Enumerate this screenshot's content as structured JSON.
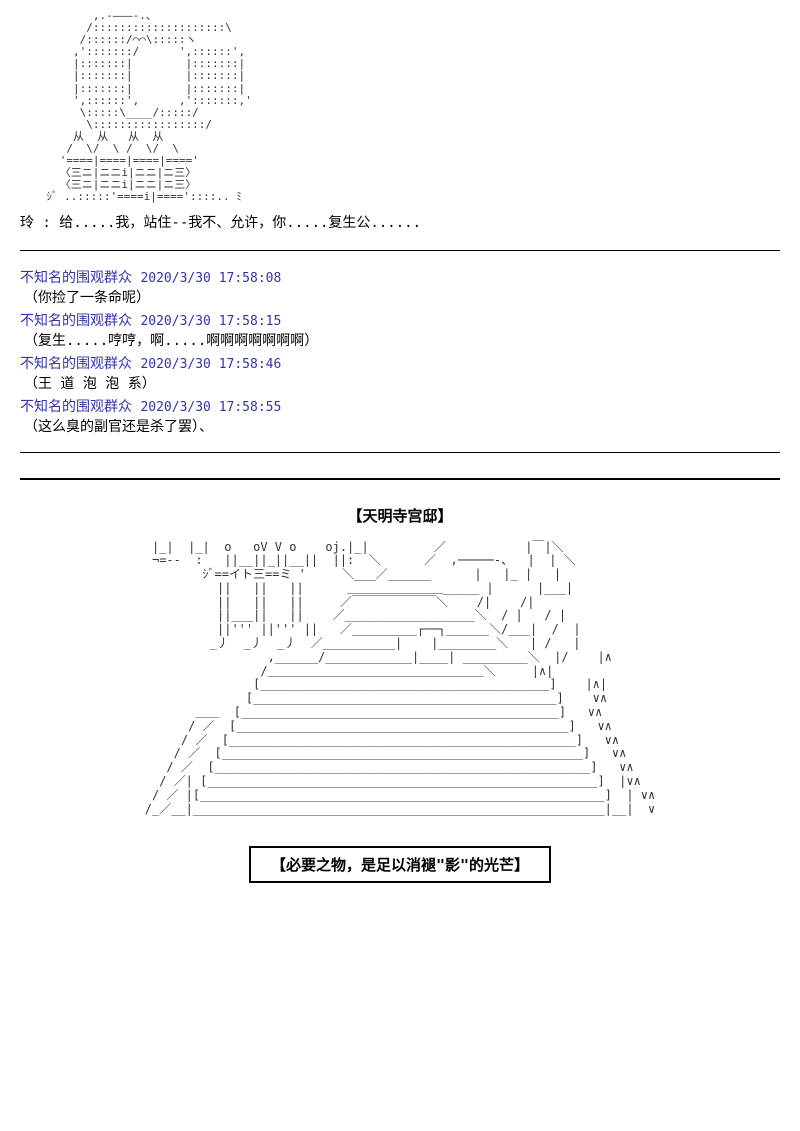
{
  "ascii_character": "           ,.-―――-.、\n          /::::::::::::::::::::\\\n         /::::::/⌒⌒\\:::::ヽ\n        ,':::::::/      ',::::::',\n        |:::::::|        |:::::::|\n        |:::::::|        |:::::::|\n        |:::::::|        |:::::::|\n        ',::::::',      ,':::::::,'\n         \\:::::\\____/:::::/\n          \\:::::::::::::::::/\n        从  从   从  从\n       /  \\/  \\ /  \\/  \\\n      '====|====|====|===='\n      〈三ニ|ニニi|ニニ|ニ三〉\n      〈三ニ|ニニi|ニニ|ニ三〉\n    ｼﾞ ..:::::'====i|===='::::.. ﾐ",
  "dialogue": "玲 : 给.....我，站住--我不、允许，你.....复生公......",
  "comments": [
    {
      "user": "不知名的围观群众",
      "ts": "2020/3/30 17:58:08",
      "text": "（你捡了一条命呢）"
    },
    {
      "user": "不知名的围观群众",
      "ts": "2020/3/30 17:58:15",
      "text": "（复生.....哼哼，啊.....啊啊啊啊啊啊啊）"
    },
    {
      "user": "不知名的围观群众",
      "ts": "2020/3/30 17:58:46",
      "text": "（王 道 泡 泡 系）"
    },
    {
      "user": "不知名的围观群众",
      "ts": "2020/3/30 17:58:55",
      "text": "（这么臭的副官还是杀了罢）、"
    }
  ],
  "section_title": "【天明寺宫邸】",
  "ascii_stairs": " |_|  |_|  o   oV V o    oj.|_|         ／           |￣|＼\n ¬=--  :   ||__||_||__||  ||:  ＼      ／  ,─────-、  |  | ＼\n        ｼﾞ==イト三==ミ '     ＼___／______      |   |_ |   |\n          ||   ||   ||      ＿＿＿＿＿＿＿＿_____ |      |___|\n          ||   ||   ||     ／￣￣￣￣￣￣￣＼    /|    /|\n          ||___||   ||    ／__________________＼  / |   / |\n          ||''' ||''' ||   ／_________┌──┐______＼/___|  /  |\n         _丿  _丿  _丿  ／__________|    |________＼   | /   |\n                 ,______/____________|____| _________＼  |/    |∧\n                /＿＿＿＿＿＿＿＿＿＿＿＿＿＿＿＿＿＿＼     |∧|\n               [________________________________________]    |∧|\n              [__________________________________________]    ∨∧\n       ＿＿  [____________________________________________]   ∨∧\n      / ／  [______________________________________________]   ∨∧\n     / ／  [________________________________________________]   ∨∧\n    / ／  [__________________________________________________]   ∨∧\n   / ／  [____________________________________________________]   ∨∧\n  / ／| [______________________________________________________]  |∨∧\n / ／ |[________________________________________________________]  | ∨∧\n/_／__|_________________________________________________________|__|  ∨",
  "boxed_text": "【必要之物，是足以消褪\"影\"的光芒】"
}
